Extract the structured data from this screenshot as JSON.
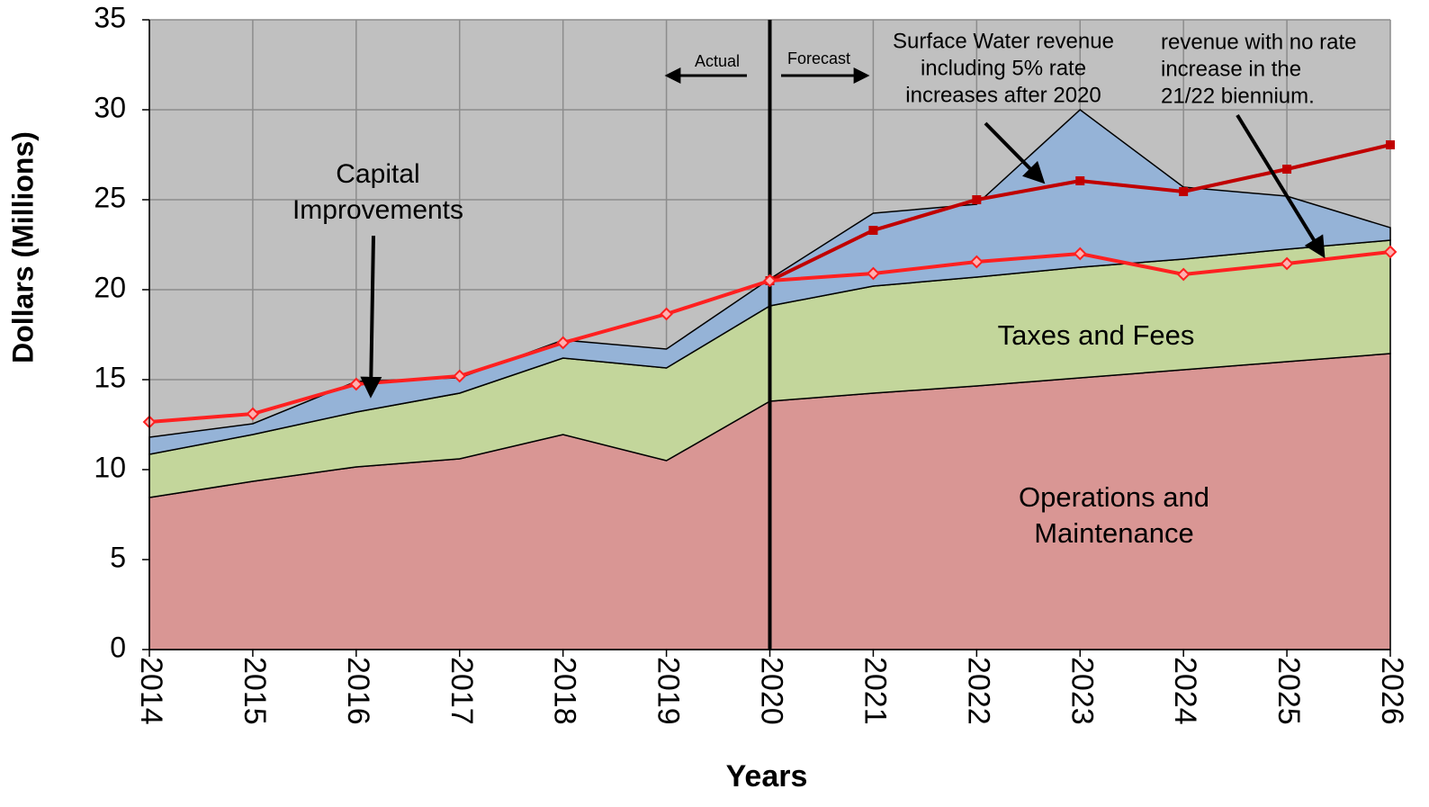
{
  "chart_data": {
    "type": "stacked_area",
    "x_label": "Years",
    "y_label": "Dollars  (Millions)",
    "categories": [
      "2014",
      "2015",
      "2016",
      "2017",
      "2018",
      "2019",
      "2020",
      "2021",
      "2022",
      "2023",
      "2024",
      "2025",
      "2026"
    ],
    "ylim": [
      0,
      35
    ],
    "yticks": [
      0,
      5,
      10,
      15,
      20,
      25,
      30,
      35
    ],
    "grid": true,
    "background": "#c0c0c0",
    "series": [
      {
        "color": "#d99694",
        "values": [
          8.45,
          9.35,
          10.15,
          10.6,
          11.95,
          10.5,
          13.8,
          14.25,
          14.65,
          15.1,
          15.55,
          16.0,
          16.45
        ]
      },
      {
        "color": "#c3d69b",
        "values": [
          2.4,
          2.6,
          3.05,
          3.65,
          4.25,
          5.15,
          5.3,
          5.95,
          6.05,
          6.15,
          6.15,
          6.25,
          6.3
        ]
      },
      {
        "color": "#95b3d7",
        "values": [
          0.95,
          0.6,
          1.7,
          0.85,
          1.0,
          1.05,
          1.5,
          4.05,
          4.05,
          8.75,
          4.0,
          2.95,
          0.7
        ]
      }
    ],
    "lines": [
      {
        "color": "#c00000",
        "values": [
          null,
          null,
          null,
          null,
          null,
          null,
          20.5,
          23.3,
          25.0,
          26.05,
          25.45,
          26.7,
          28.05
        ]
      },
      {
        "color": "#ff2020",
        "values": [
          12.65,
          13.1,
          14.75,
          15.2,
          17.05,
          18.65,
          20.5,
          20.9,
          21.55,
          22.0,
          20.85,
          21.45,
          22.1
        ]
      }
    ],
    "divider": "2020",
    "actual_label": "Actual",
    "forecast_label": "Forecast",
    "annotations": [
      {
        "lines": [
          "Capital",
          "Improvements"
        ]
      },
      {
        "lines": [
          "Surface Water revenue",
          "including 5% rate",
          "increases after 2020"
        ]
      },
      {
        "lines": [
          "revenue with no rate",
          "increase in the",
          "21/22 biennium."
        ]
      },
      {
        "lines": [
          "Taxes and Fees"
        ]
      },
      {
        "lines": [
          "Operations and",
          "Maintenance"
        ]
      }
    ]
  }
}
